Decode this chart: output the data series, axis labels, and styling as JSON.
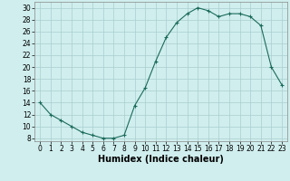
{
  "xlabel": "Humidex (Indice chaleur)",
  "x": [
    0,
    1,
    2,
    3,
    4,
    5,
    6,
    7,
    8,
    9,
    10,
    11,
    12,
    13,
    14,
    15,
    16,
    17,
    18,
    19,
    20,
    21,
    22,
    23
  ],
  "y": [
    14,
    12,
    11,
    10,
    9,
    8.5,
    8,
    8,
    8.5,
    13.5,
    16.5,
    21,
    25,
    27.5,
    29,
    30,
    29.5,
    28.5,
    29,
    29,
    28.5,
    27,
    20,
    17
  ],
  "line_color": "#1a6b5a",
  "marker": "+",
  "bg_color": "#d0eeee",
  "grid_color": "#aacece",
  "ylim": [
    7.5,
    31
  ],
  "yticks": [
    8,
    10,
    12,
    14,
    16,
    18,
    20,
    22,
    24,
    26,
    28,
    30
  ],
  "xticks": [
    0,
    1,
    2,
    3,
    4,
    5,
    6,
    7,
    8,
    9,
    10,
    11,
    12,
    13,
    14,
    15,
    16,
    17,
    18,
    19,
    20,
    21,
    22,
    23
  ],
  "label_fontsize": 7,
  "tick_fontsize": 5.5
}
